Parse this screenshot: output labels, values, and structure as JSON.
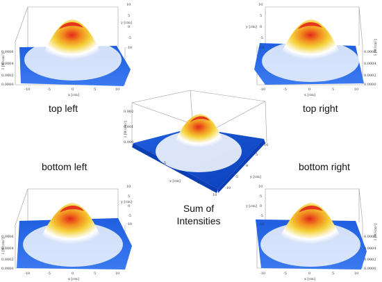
{
  "captions": {
    "top_left": "top left",
    "top_right": "top right",
    "bottom_left": "bottom left",
    "bottom_right": "bottom right",
    "center_line1": "Sum of",
    "center_line2": "Intensities"
  },
  "panels": [
    {
      "id": "top-left",
      "z_ticks": [
        "0.0006",
        "0.0004",
        "0.0002",
        "0.0000"
      ],
      "z_label": "I [W/cm²]",
      "x_ticks": [
        "-10",
        "-5",
        "0",
        "5",
        "10"
      ],
      "x_label": "x [cm]",
      "y_ticks": [
        "10",
        "5",
        "0",
        "-5",
        "-10"
      ],
      "y_label": "y [cm]"
    },
    {
      "id": "top-right",
      "z_ticks": [
        "0.0006",
        "0.0004",
        "0.0002",
        "0.0000"
      ],
      "z_label": "I [W/cm²]",
      "x_ticks": [
        "-10",
        "-5",
        "0",
        "5",
        "10"
      ],
      "x_label": "x [cm]",
      "y_ticks": [
        "10",
        "5",
        "0",
        "-5",
        "-10"
      ],
      "y_label": "y [cm]"
    },
    {
      "id": "bottom-left",
      "z_ticks": [
        "0.0006",
        "0.0004",
        "0.0002",
        "0.0000"
      ],
      "z_label": "I [W/cm²]",
      "x_ticks": [
        "-10",
        "-5",
        "0",
        "5",
        "10"
      ],
      "x_label": "x [cm]",
      "y_ticks": [
        "10",
        "5",
        "0",
        "-5",
        "-10"
      ],
      "y_label": "y [cm]"
    },
    {
      "id": "bottom-right",
      "z_ticks": [
        "0.0006",
        "0.0004",
        "0.0002",
        "0.0000"
      ],
      "z_label": "I [W/cm²]",
      "x_ticks": [
        "-10",
        "-5",
        "0",
        "5",
        "10"
      ],
      "x_label": "x [cm]",
      "y_ticks": [
        "10",
        "5",
        "0",
        "-5",
        "-10"
      ],
      "y_label": "y [cm]"
    }
  ],
  "center_panel": {
    "z_ticks": [
      "0.002",
      "0.001",
      "0.000"
    ],
    "z_label": "I [W/cm²]",
    "x_ticks": [
      "-10",
      "-5",
      "0",
      "5",
      "10"
    ],
    "x_label": "x [cm]",
    "y_ticks": [
      "-10",
      "-5",
      "0",
      "5",
      "10"
    ],
    "y_label": "y [cm]"
  },
  "colors": {
    "base_blue": "#1f5fe0",
    "dark_blue": "#0a3fb8",
    "white": "#ffffff",
    "yellow": "#f4d23a",
    "orange": "#f28a1e",
    "red": "#e2281b"
  }
}
